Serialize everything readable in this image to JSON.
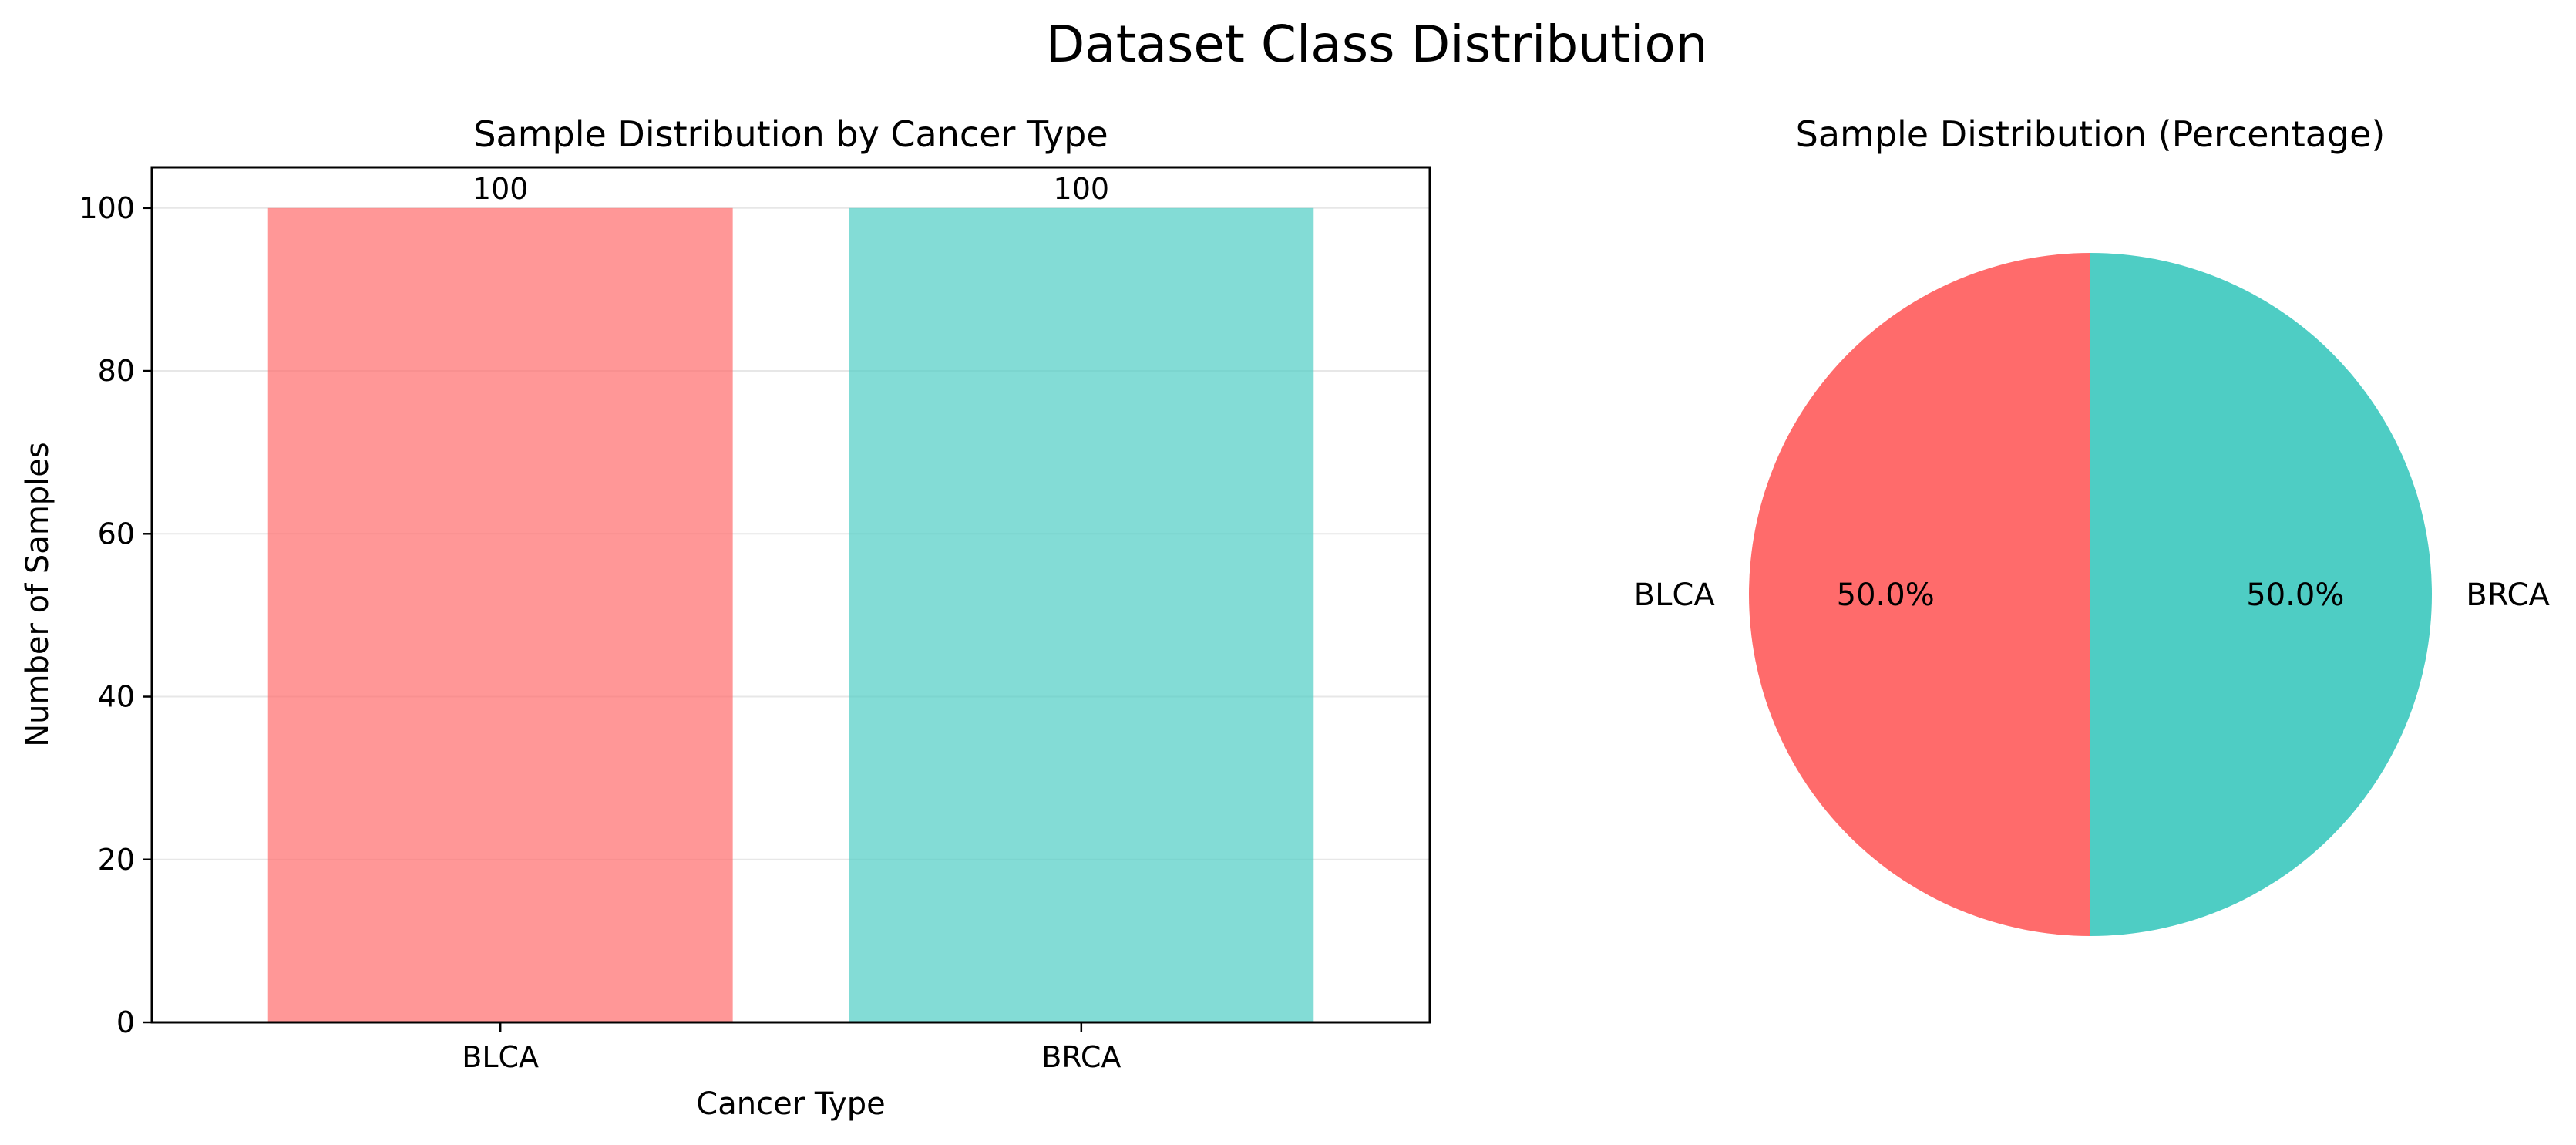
{
  "figure": {
    "title": "Dataset Class Distribution"
  },
  "chart_data": [
    {
      "type": "bar",
      "title": "Sample Distribution by Cancer Type",
      "xlabel": "Cancer Type",
      "ylabel": "Number of Samples",
      "categories": [
        "BLCA",
        "BRCA"
      ],
      "values": [
        100,
        100
      ],
      "data_labels": [
        "100",
        "100"
      ],
      "colors": [
        "#ff6b6b",
        "#4ecdc4"
      ],
      "bar_opacity": 0.7,
      "ylim": [
        0,
        105
      ],
      "yticks": [
        0,
        20,
        40,
        60,
        80,
        100
      ],
      "grid": "y"
    },
    {
      "type": "pie",
      "title": "Sample Distribution (Percentage)",
      "labels": [
        "BLCA",
        "BRCA"
      ],
      "values": [
        100,
        100
      ],
      "percent_labels": [
        "50.0%",
        "50.0%"
      ],
      "colors": [
        "#ff6b6b",
        "#4ecdc4"
      ],
      "start_angle_deg": 90
    }
  ]
}
